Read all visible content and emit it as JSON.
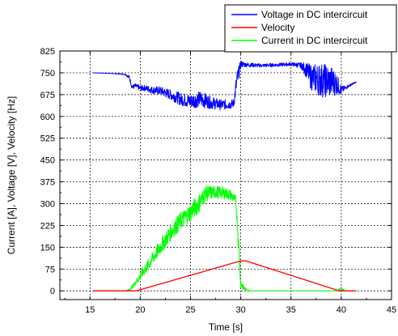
{
  "chart_data": {
    "type": "line",
    "title": "",
    "xlabel": "Time [s]",
    "ylabel": "Current [A], Voltage [V], Velocity [Hz]",
    "xlim": [
      12,
      45
    ],
    "ylim": [
      -30,
      825
    ],
    "xticks": [
      15,
      20,
      25,
      30,
      35,
      40,
      45
    ],
    "yticks": [
      0,
      75,
      150,
      225,
      300,
      375,
      450,
      525,
      600,
      675,
      750,
      825
    ],
    "grid": true,
    "legend_position": "top-right",
    "series": [
      {
        "name": "Voltage in DC intercircuit",
        "color": "#0000ff",
        "noisy": true,
        "x": [
          15.3,
          17.0,
          18.5,
          18.9,
          19.2,
          19.5,
          20.0,
          20.5,
          21.0,
          22.0,
          23.0,
          24.0,
          25.0,
          26.0,
          27.0,
          28.0,
          29.0,
          29.3,
          29.6,
          30.0,
          30.5,
          32.0,
          34.0,
          35.0,
          36.0,
          36.5,
          37.0,
          38.0,
          39.0,
          39.5,
          40.0,
          40.5,
          41.0,
          41.5
        ],
        "y": [
          750,
          748,
          745,
          735,
          700,
          705,
          697,
          698,
          692,
          688,
          675,
          660,
          652,
          660,
          648,
          640,
          642,
          645,
          720,
          780,
          778,
          775,
          778,
          780,
          775,
          760,
          735,
          725,
          720,
          715,
          690,
          700,
          710,
          718
        ],
        "noise": [
          0,
          0,
          2,
          6,
          8,
          8,
          10,
          10,
          12,
          15,
          18,
          22,
          25,
          28,
          22,
          18,
          16,
          15,
          35,
          12,
          8,
          6,
          6,
          6,
          10,
          25,
          45,
          60,
          55,
          40,
          15,
          6,
          4,
          2
        ]
      },
      {
        "name": "Velocity",
        "color": "#ff0000",
        "noisy": false,
        "x": [
          15.3,
          19.6,
          30.0,
          30.5,
          39.8,
          41.5
        ],
        "y": [
          0,
          0,
          103,
          103,
          0,
          0
        ],
        "noise": [
          0,
          0,
          0,
          0,
          0,
          0
        ]
      },
      {
        "name": "Current in DC intercircuit",
        "color": "#00ff00",
        "noisy": true,
        "x": [
          15.3,
          18.5,
          19.0,
          20.0,
          21.0,
          22.0,
          23.0,
          24.0,
          25.0,
          25.8,
          26.5,
          27.5,
          28.5,
          29.0,
          29.5,
          29.8,
          30.0,
          30.3,
          30.6,
          31.0,
          35.0,
          39.6,
          40.0,
          40.4,
          41.5
        ],
        "y": [
          0,
          0,
          5,
          50,
          100,
          150,
          200,
          240,
          270,
          300,
          335,
          340,
          335,
          330,
          310,
          150,
          25,
          10,
          3,
          0,
          0,
          0,
          8,
          0,
          0
        ],
        "noise": [
          0,
          0,
          3,
          15,
          22,
          26,
          30,
          30,
          32,
          34,
          28,
          22,
          20,
          18,
          18,
          25,
          18,
          10,
          2,
          0,
          0,
          0,
          6,
          0,
          0
        ]
      }
    ]
  }
}
